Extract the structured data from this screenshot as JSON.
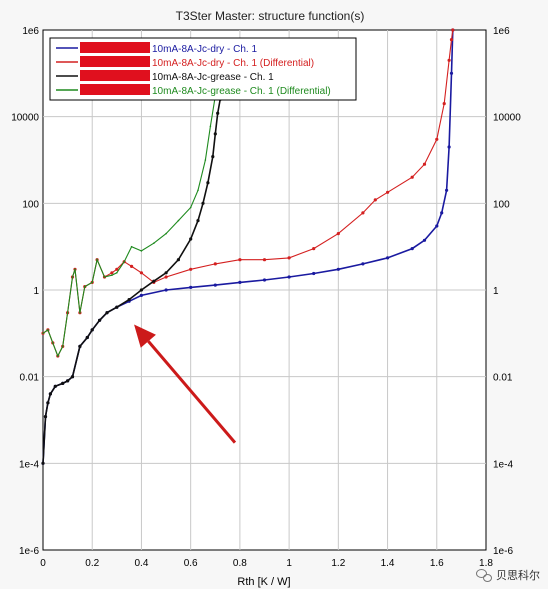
{
  "chart_data": {
    "type": "line",
    "title": "T3Ster Master: structure function(s)",
    "xlabel": "Rth  [K / W]",
    "ylabel": "",
    "xlim": [
      0,
      1.8
    ],
    "ylim_log10": [
      -6,
      6
    ],
    "y_scale": "log",
    "grid": true,
    "legend_position": "top-left",
    "x_ticks": [
      "0",
      "0.2",
      "0.4",
      "0.6",
      "0.8",
      "1",
      "1.2",
      "1.4",
      "1.6",
      "1.8"
    ],
    "y_ticks": [
      "1e-6",
      "1e-4",
      "0.01",
      "1",
      "100",
      "10000",
      "1e6"
    ],
    "series": [
      {
        "name": "10mA-8A-Jc-dry - Ch. 1",
        "color": "#1a1aa0",
        "x": [
          0.0,
          0.01,
          0.02,
          0.03,
          0.05,
          0.08,
          0.1,
          0.12,
          0.15,
          0.18,
          0.2,
          0.23,
          0.26,
          0.3,
          0.35,
          0.4,
          0.5,
          0.6,
          0.7,
          0.8,
          0.9,
          1.0,
          1.1,
          1.2,
          1.3,
          1.4,
          1.5,
          1.55,
          1.6,
          1.62,
          1.64,
          1.65,
          1.66,
          1.665
        ],
        "y": [
          0.0001,
          0.0012,
          0.0025,
          0.004,
          0.006,
          0.007,
          0.008,
          0.01,
          0.05,
          0.08,
          0.12,
          0.2,
          0.3,
          0.4,
          0.55,
          0.75,
          1.0,
          1.15,
          1.3,
          1.5,
          1.7,
          2.0,
          2.4,
          3.0,
          4.0,
          5.5,
          9.0,
          14.0,
          30.0,
          60.0,
          200.0,
          2000.0,
          100000.0,
          1000000.0
        ]
      },
      {
        "name": "10mA-8A-Jc-dry - Ch. 1 (Differential)",
        "color": "#d42020",
        "x": [
          0.0,
          0.02,
          0.04,
          0.06,
          0.08,
          0.1,
          0.12,
          0.13,
          0.15,
          0.17,
          0.2,
          0.22,
          0.25,
          0.28,
          0.3,
          0.33,
          0.36,
          0.4,
          0.45,
          0.5,
          0.6,
          0.7,
          0.8,
          0.9,
          1.0,
          1.1,
          1.2,
          1.3,
          1.35,
          1.4,
          1.5,
          1.55,
          1.6,
          1.63,
          1.65,
          1.66,
          1.665
        ],
        "y": [
          0.1,
          0.12,
          0.06,
          0.03,
          0.05,
          0.3,
          2.0,
          3.0,
          0.3,
          1.2,
          1.5,
          5.0,
          2.0,
          2.5,
          3.0,
          4.5,
          3.5,
          2.5,
          1.5,
          2.0,
          3.0,
          4.0,
          5.0,
          5.0,
          5.5,
          9.0,
          20.0,
          60.0,
          120.0,
          180.0,
          400.0,
          800.0,
          3000.0,
          20000.0,
          200000.0,
          600000.0,
          1000000.0
        ]
      },
      {
        "name": "10mA-8A-Jc-grease - Ch. 1",
        "color": "#101010",
        "x": [
          0.0,
          0.01,
          0.02,
          0.03,
          0.05,
          0.08,
          0.1,
          0.12,
          0.15,
          0.18,
          0.2,
          0.23,
          0.26,
          0.3,
          0.35,
          0.4,
          0.45,
          0.5,
          0.55,
          0.6,
          0.63,
          0.65,
          0.67,
          0.69,
          0.7,
          0.71,
          0.72
        ],
        "y": [
          0.0001,
          0.0012,
          0.0025,
          0.004,
          0.006,
          0.007,
          0.008,
          0.01,
          0.05,
          0.08,
          0.12,
          0.2,
          0.3,
          0.4,
          0.6,
          1.0,
          1.6,
          2.5,
          5.0,
          15.0,
          40.0,
          100.0,
          300.0,
          1200.0,
          4000.0,
          12000.0,
          25000.0
        ]
      },
      {
        "name": "10mA-8A-Jc-grease - Ch. 1 (Differential)",
        "color": "#1e8a1e",
        "x": [
          0.0,
          0.02,
          0.04,
          0.06,
          0.08,
          0.1,
          0.12,
          0.13,
          0.15,
          0.17,
          0.2,
          0.22,
          0.25,
          0.28,
          0.3,
          0.33,
          0.36,
          0.4,
          0.45,
          0.5,
          0.55,
          0.6,
          0.63,
          0.66,
          0.68,
          0.7,
          0.71
        ],
        "y": [
          0.1,
          0.12,
          0.06,
          0.03,
          0.05,
          0.3,
          2.0,
          3.0,
          0.3,
          1.2,
          1.5,
          5.0,
          2.0,
          2.2,
          2.5,
          4.5,
          10.0,
          8.0,
          12.0,
          20.0,
          40.0,
          80.0,
          200.0,
          1000.0,
          6000.0,
          30000.0,
          100000.0
        ]
      }
    ],
    "annotation": {
      "type": "arrow",
      "color": "#cc1a1a",
      "from": [
        0.78,
        0.0003
      ],
      "to": [
        0.37,
        0.16
      ]
    }
  },
  "watermark": {
    "text": "贝思科尔"
  }
}
